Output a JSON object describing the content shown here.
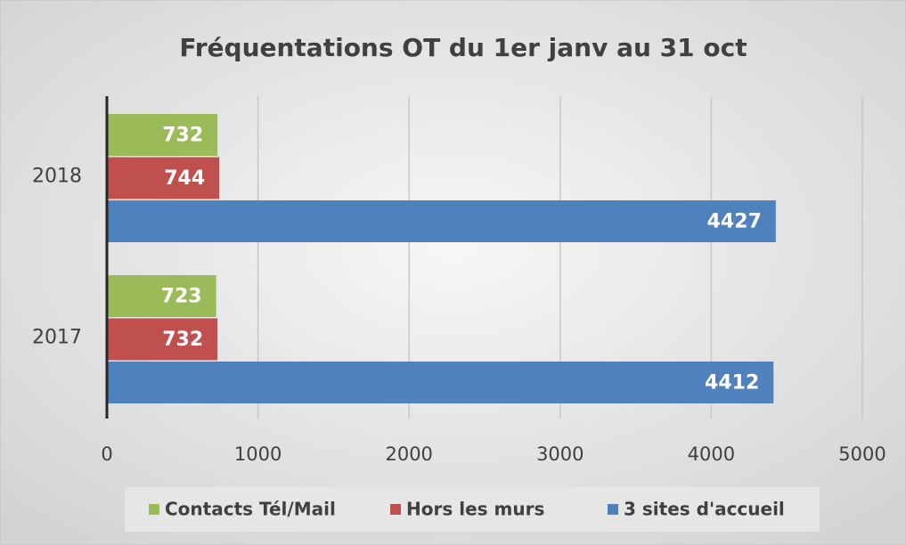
{
  "chart_data": {
    "type": "hbar",
    "title": "Fréquentations OT du 1er janv au 31 oct",
    "categories": [
      "2018",
      "2017"
    ],
    "series": [
      {
        "name": "Contacts Tél/Mail",
        "color": "#9bbb59",
        "values": [
          732,
          723
        ]
      },
      {
        "name": "Hors les murs",
        "color": "#c0504d",
        "values": [
          744,
          732
        ]
      },
      {
        "name": "3 sites d'accueil",
        "color": "#4f81bd",
        "values": [
          4427,
          4412
        ]
      }
    ],
    "xlim": [
      0,
      5000
    ],
    "xticks": [
      0,
      1000,
      2000,
      3000,
      4000,
      5000
    ],
    "grid": true,
    "legend": "bottom"
  }
}
